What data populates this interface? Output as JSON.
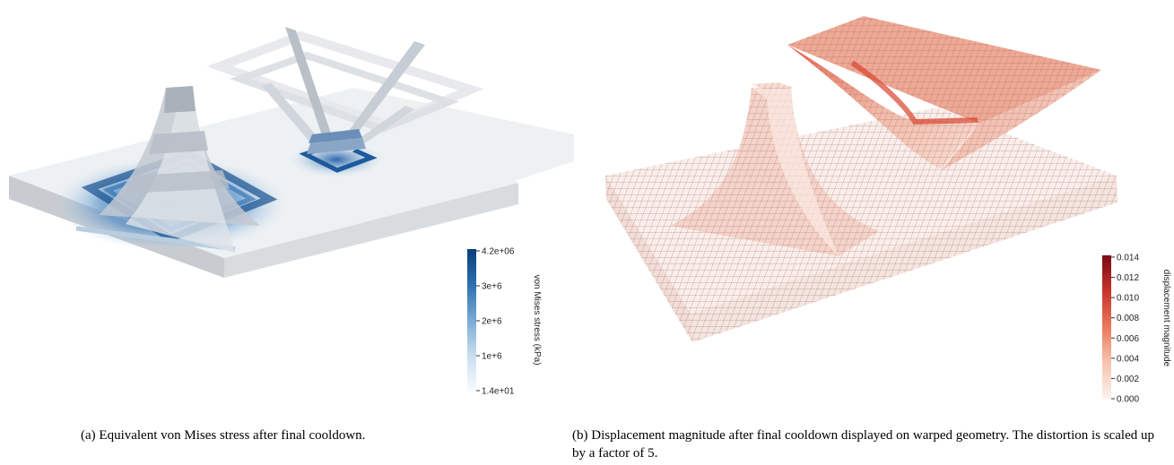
{
  "figure_a": {
    "colorbar": {
      "title": "von Mises stress (kPa)",
      "ticks": [
        "4.2e+06",
        "3e+6",
        "2e+6",
        "1e+6",
        "1.4e+01"
      ],
      "colors": [
        "#0b3d7a",
        "#2c6fb0",
        "#78aad4",
        "#c9ddef",
        "#f7fbff"
      ]
    },
    "caption": {
      "label": "(a)",
      "text": "Equivalent von Mises stress after final cooldown."
    }
  },
  "figure_b": {
    "colorbar": {
      "title": "displacement magnitude",
      "ticks": [
        "0.014",
        "0.012",
        "0.010",
        "0.008",
        "0.006",
        "0.004",
        "0.002",
        "0.000"
      ],
      "colors": [
        "#7a0a12",
        "#c9322c",
        "#ea7a5c",
        "#f6c4b0",
        "#fdf2ee"
      ]
    },
    "caption": {
      "label": "(b)",
      "text": "Displacement magnitude after final cooldown displayed on warped geometry. The distortion is scaled up by a factor of 5."
    }
  }
}
